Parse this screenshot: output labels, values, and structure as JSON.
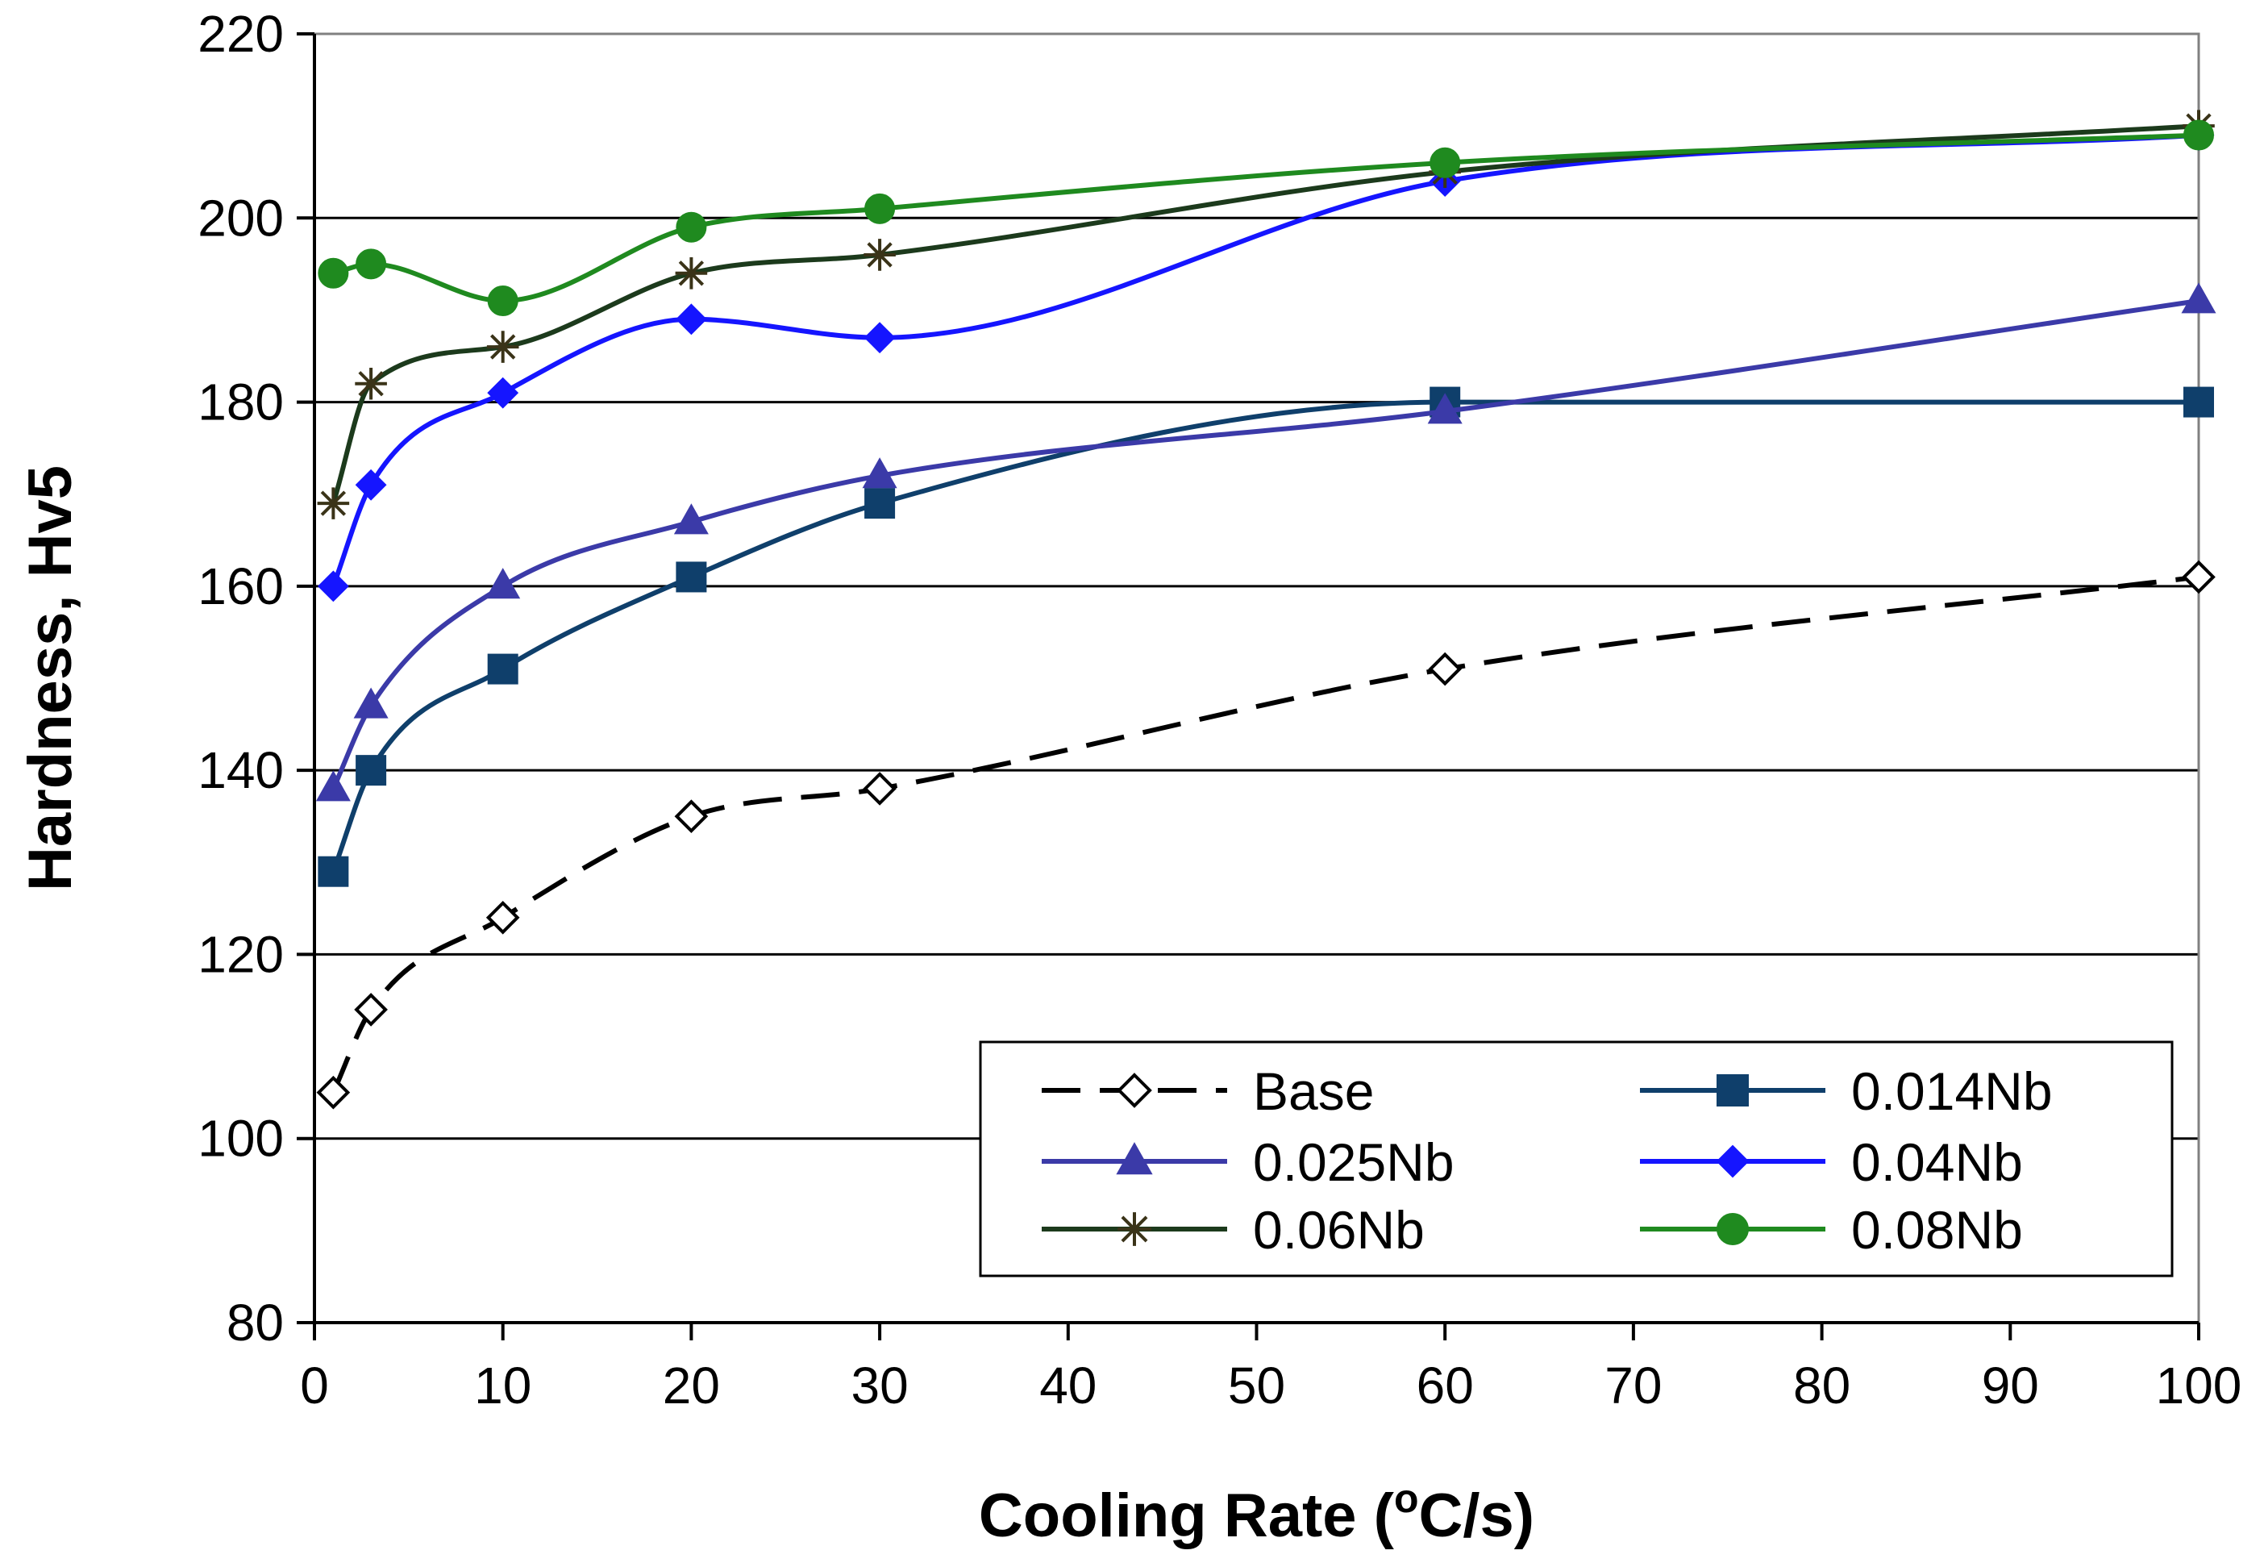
{
  "chart_data": {
    "type": "line",
    "title": "",
    "xlabel": "Cooling Rate (",
    "xlabel_superscript": "o",
    "xlabel_suffix": "C/s)",
    "ylabel": "Hardness, Hv5",
    "xlim": [
      0,
      100
    ],
    "ylim": [
      80,
      220
    ],
    "xticks": [
      0,
      10,
      20,
      30,
      40,
      50,
      60,
      70,
      80,
      90,
      100
    ],
    "yticks": [
      80,
      100,
      120,
      140,
      160,
      180,
      200,
      220
    ],
    "grid": "horizontal",
    "legend_position": "bottom-right",
    "series": [
      {
        "name": "Base",
        "color": "#000000",
        "dash": true,
        "marker": "diamond-open",
        "points": [
          [
            1,
            105
          ],
          [
            3,
            114
          ],
          [
            10,
            124
          ],
          [
            20,
            135
          ],
          [
            30,
            138
          ],
          [
            60,
            151
          ],
          [
            100,
            161
          ]
        ]
      },
      {
        "name": "0.014Nb",
        "color": "#0f3f6b",
        "dash": false,
        "marker": "square",
        "points": [
          [
            1,
            129
          ],
          [
            3,
            140
          ],
          [
            10,
            151
          ],
          [
            20,
            161
          ],
          [
            30,
            169
          ],
          [
            60,
            180
          ],
          [
            100,
            180
          ]
        ]
      },
      {
        "name": "0.025Nb",
        "color": "#3b3aa8",
        "dash": false,
        "marker": "triangle",
        "points": [
          [
            1,
            138
          ],
          [
            3,
            147
          ],
          [
            10,
            160
          ],
          [
            20,
            167
          ],
          [
            30,
            172
          ],
          [
            60,
            179
          ],
          [
            100,
            191
          ]
        ]
      },
      {
        "name": "0.04Nb",
        "color": "#1515ff",
        "dash": false,
        "marker": "diamond",
        "points": [
          [
            1,
            160
          ],
          [
            3,
            171
          ],
          [
            10,
            181
          ],
          [
            20,
            189
          ],
          [
            30,
            187
          ],
          [
            60,
            204
          ],
          [
            100,
            209
          ]
        ]
      },
      {
        "name": "0.06Nb",
        "color": "#1c3a1c",
        "dash": false,
        "marker": "star",
        "points": [
          [
            1,
            169
          ],
          [
            3,
            182
          ],
          [
            10,
            186
          ],
          [
            20,
            194
          ],
          [
            30,
            196
          ],
          [
            60,
            205
          ],
          [
            100,
            210
          ]
        ]
      },
      {
        "name": "0.08Nb",
        "color": "#1f8a1f",
        "dash": false,
        "marker": "circle",
        "points": [
          [
            1,
            194
          ],
          [
            3,
            195
          ],
          [
            10,
            191
          ],
          [
            20,
            199
          ],
          [
            30,
            201
          ],
          [
            60,
            206
          ],
          [
            100,
            209
          ]
        ]
      }
    ]
  }
}
